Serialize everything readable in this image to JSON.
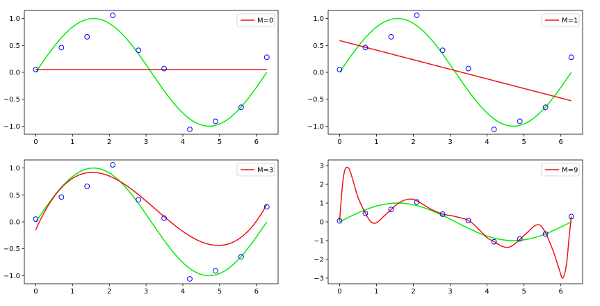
{
  "colors": {
    "data_points": "#0000ff",
    "true_curve": "#00ee00",
    "fit_curve": "#ee1111",
    "axes": "#000000",
    "background": "#ffffff"
  },
  "chart_data": [
    {
      "type": "line",
      "title": "",
      "xlabel": "",
      "ylabel": "",
      "xlim": [
        -0.31,
        6.59
      ],
      "ylim": [
        -1.15,
        1.15
      ],
      "xticks": [
        0,
        1,
        2,
        3,
        4,
        5,
        6
      ],
      "yticks": [
        -1.0,
        -0.5,
        0.0,
        0.5,
        1.0
      ],
      "ytick_labels": [
        "−1.0",
        "−0.5",
        "0.0",
        "0.5",
        "1.0"
      ],
      "legend": {
        "location": "top-right",
        "entries": [
          "M=0"
        ]
      },
      "grid": false,
      "scatter": {
        "x": [
          0.0,
          0.698,
          1.396,
          2.094,
          2.793,
          3.491,
          4.189,
          4.887,
          5.585,
          6.283
        ],
        "y": [
          0.05,
          0.46,
          0.66,
          1.06,
          0.41,
          0.07,
          -1.06,
          -0.91,
          -0.65,
          0.28
        ]
      },
      "series": [
        {
          "function": "sin",
          "x_range": [
            0,
            6.283
          ]
        },
        {
          "name": "M=0",
          "polynomial_coefficients": [
            0.05
          ],
          "x_range": [
            0,
            6.283
          ]
        }
      ]
    },
    {
      "type": "line",
      "title": "",
      "xlabel": "",
      "ylabel": "",
      "xlim": [
        -0.31,
        6.59
      ],
      "ylim": [
        -1.15,
        1.15
      ],
      "xticks": [
        0,
        1,
        2,
        3,
        4,
        5,
        6
      ],
      "yticks": [
        -1.0,
        -0.5,
        0.0,
        0.5,
        1.0
      ],
      "ytick_labels": [
        "−1.0",
        "−0.5",
        "0.0",
        "0.5",
        "1.0"
      ],
      "legend": {
        "location": "top-right",
        "entries": [
          "M=1"
        ]
      },
      "grid": false,
      "scatter": {
        "x": [
          0.0,
          0.698,
          1.396,
          2.094,
          2.793,
          3.491,
          4.189,
          4.887,
          5.585,
          6.283
        ],
        "y": [
          0.05,
          0.46,
          0.66,
          1.06,
          0.41,
          0.07,
          -1.06,
          -0.91,
          -0.65,
          0.28
        ]
      },
      "series": [
        {
          "function": "sin",
          "x_range": [
            0,
            6.283
          ]
        },
        {
          "name": "M=1",
          "polynomial_coefficients": [
            0.59,
            -0.178
          ],
          "x_range": [
            0,
            6.283
          ]
        }
      ]
    },
    {
      "type": "line",
      "title": "",
      "xlabel": "",
      "ylabel": "",
      "xlim": [
        -0.31,
        6.59
      ],
      "ylim": [
        -1.15,
        1.15
      ],
      "xticks": [
        0,
        1,
        2,
        3,
        4,
        5,
        6
      ],
      "yticks": [
        -1.0,
        -0.5,
        0.0,
        0.5,
        1.0
      ],
      "ytick_labels": [
        "−1.0",
        "−0.5",
        "0.0",
        "0.5",
        "1.0"
      ],
      "legend": {
        "location": "top-right",
        "entries": [
          "M=3"
        ]
      },
      "grid": false,
      "scatter": {
        "x": [
          0.0,
          0.698,
          1.396,
          2.094,
          2.793,
          3.491,
          4.189,
          4.887,
          5.585,
          6.283
        ],
        "y": [
          0.05,
          0.46,
          0.66,
          1.06,
          0.41,
          0.07,
          -1.06,
          -0.91,
          -0.65,
          0.28
        ]
      },
      "series": [
        {
          "function": "sin",
          "x_range": [
            0,
            6.283
          ]
        },
        {
          "name": "M=3",
          "polynomial_coefficients": [
            -0.15,
            1.55,
            -0.66,
            0.0677
          ],
          "x_range": [
            0,
            6.283
          ]
        }
      ]
    },
    {
      "type": "line",
      "title": "",
      "xlabel": "",
      "ylabel": "",
      "xlim": [
        -0.31,
        6.59
      ],
      "ylim": [
        -3.3,
        3.3
      ],
      "xticks": [
        0,
        1,
        2,
        3,
        4,
        5,
        6
      ],
      "yticks": [
        -3,
        -2,
        -1,
        0,
        1,
        2,
        3
      ],
      "ytick_labels": [
        "−3",
        "−2",
        "−1",
        "0",
        "1",
        "2",
        "3"
      ],
      "legend": {
        "location": "top-right",
        "entries": [
          "M=9"
        ]
      },
      "grid": false,
      "scatter": {
        "x": [
          0.0,
          0.698,
          1.396,
          2.094,
          2.793,
          3.491,
          4.189,
          4.887,
          5.585,
          6.283
        ],
        "y": [
          0.05,
          0.46,
          0.66,
          1.06,
          0.41,
          0.07,
          -1.06,
          -0.91,
          -0.65,
          0.28
        ]
      },
      "series": [
        {
          "function": "sin",
          "x_range": [
            0,
            6.283
          ]
        },
        {
          "name": "M=9",
          "x": [
            0.0,
            0.08,
            0.15,
            0.25,
            0.35,
            0.5,
            0.7,
            0.85,
            1.0,
            1.2,
            1.4,
            1.6,
            1.8,
            2.0,
            2.2,
            2.5,
            2.8,
            3.1,
            3.5,
            3.8,
            4.0,
            4.2,
            4.4,
            4.6,
            4.8,
            4.9,
            5.1,
            5.3,
            5.45,
            5.6,
            5.8,
            5.95,
            6.05,
            6.15,
            6.22,
            6.283
          ],
          "y": [
            0.05,
            2.0,
            2.8,
            2.85,
            2.3,
            1.3,
            0.46,
            0.0,
            -0.05,
            0.3,
            0.66,
            1.0,
            1.18,
            1.2,
            1.0,
            0.65,
            0.41,
            0.3,
            0.07,
            -0.45,
            -0.85,
            -1.06,
            -1.3,
            -1.35,
            -1.1,
            -0.91,
            -0.55,
            -0.2,
            -0.2,
            -0.65,
            -1.6,
            -2.5,
            -3.0,
            -2.3,
            -0.9,
            0.28
          ]
        }
      ]
    }
  ]
}
